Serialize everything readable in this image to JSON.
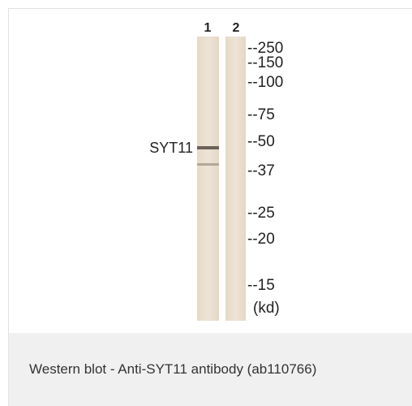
{
  "figure": {
    "lanes": [
      "1",
      "2"
    ],
    "band_label": "SYT11",
    "markers": [
      "--250",
      "--150",
      "--100",
      "--75",
      "--50",
      "--37",
      "--25",
      "--20",
      "--15",
      "(kd)"
    ],
    "caption": "Western blot - Anti-SYT11 antibody (ab110766)"
  }
}
